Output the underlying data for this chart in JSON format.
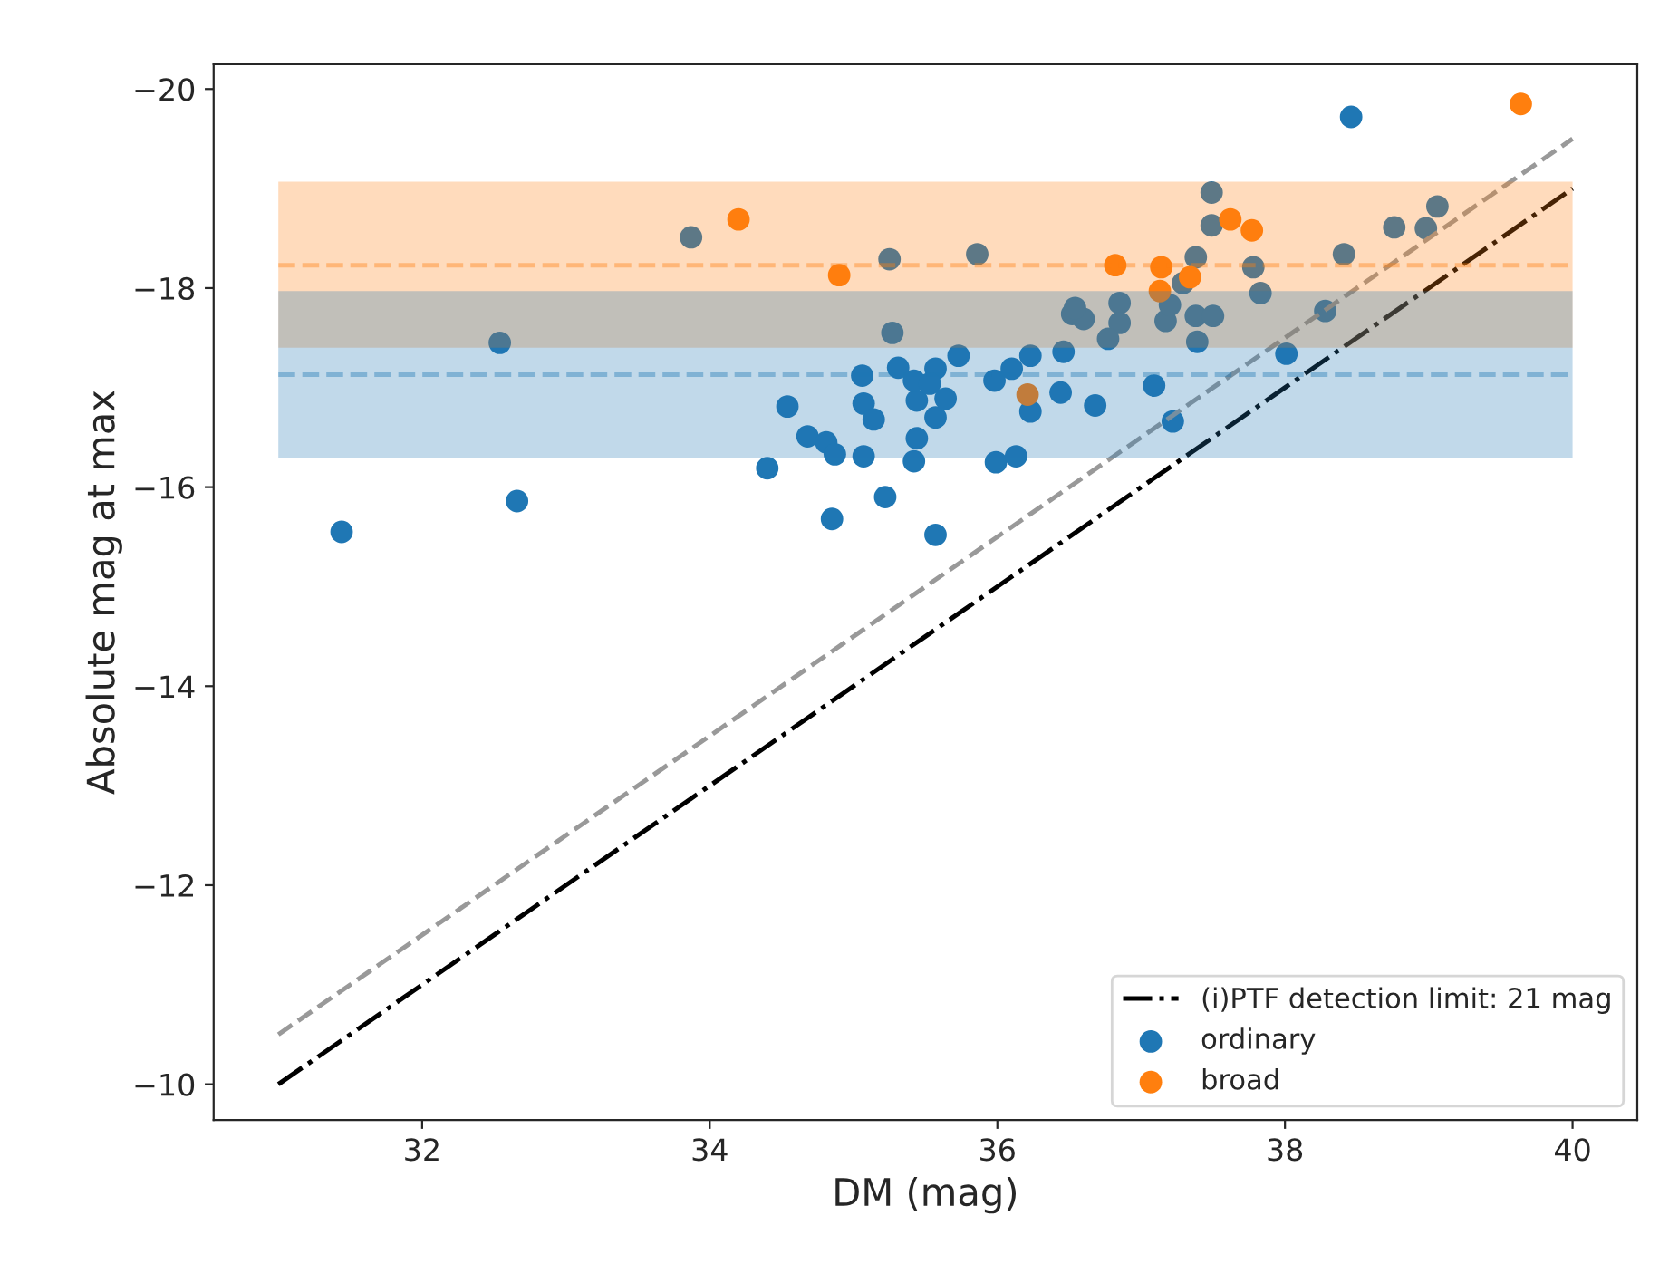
{
  "chart_data": {
    "type": "scatter",
    "xlabel": "DM (mag)",
    "ylabel": "Absolute mag at max",
    "xlim": [
      30.55,
      40.45
    ],
    "ylim": [
      -9.64,
      -20.25
    ],
    "xticks": [
      32,
      34,
      36,
      38,
      40
    ],
    "yticks": [
      {
        "value": -20,
        "label": "−20"
      },
      {
        "value": -18,
        "label": "−18"
      },
      {
        "value": -16,
        "label": "−16"
      },
      {
        "value": -14,
        "label": "−14"
      },
      {
        "value": -12,
        "label": "−12"
      },
      {
        "value": -10,
        "label": "−10"
      }
    ],
    "grid": false,
    "legend": "bottom right",
    "series": [
      {
        "name": "(i)PTF detection limit: 21 mag",
        "type": "line",
        "color": "#000000",
        "line_style": "dashdot",
        "marker": "none",
        "x": [
          31,
          40
        ],
        "values": [
          -10,
          -19
        ]
      },
      {
        "type": "line",
        "color": "#999999",
        "line_style": "dashed",
        "marker": "none",
        "x": [
          31,
          40
        ],
        "values": [
          -10.5,
          -19.5
        ]
      },
      {
        "name": "ordinary",
        "color": "#1f77b4",
        "marker": "circle",
        "x": [
          31.44,
          32.66,
          32.54,
          33.87,
          35.25,
          35.27,
          34.4,
          34.85,
          35.22,
          35.57,
          34.54,
          34.68,
          34.81,
          34.87,
          35.07,
          35.42,
          35.06,
          35.07,
          35.14,
          35.31,
          35.44,
          35.42,
          35.44,
          35.57,
          35.57,
          38.46,
          37.49,
          37.49,
          35.86,
          37.29,
          37.38,
          37.78,
          37.83,
          38.41,
          38.76,
          38.98,
          39.06,
          38.28,
          38.01,
          37.22,
          37.09,
          36.68,
          36.44,
          36.46,
          36.23,
          36.23,
          36.1,
          35.98,
          35.99,
          36.13,
          35.64,
          35.73,
          35.53,
          36.52,
          36.6,
          36.54,
          36.85,
          36.85,
          36.77,
          37.17,
          37.2,
          37.38,
          37.5,
          37.39
        ],
        "values": [
          -15.55,
          -15.86,
          -17.45,
          -18.51,
          -18.29,
          -17.55,
          -16.19,
          -15.68,
          -15.9,
          -15.52,
          -16.81,
          -16.51,
          -16.45,
          -16.33,
          -16.31,
          -16.26,
          -17.12,
          -16.84,
          -16.68,
          -17.2,
          -16.87,
          -17.07,
          -16.49,
          -17.19,
          -16.7,
          -19.72,
          -18.96,
          -18.63,
          -18.34,
          -18.05,
          -18.31,
          -18.21,
          -17.95,
          -18.34,
          -18.61,
          -18.6,
          -18.82,
          -17.77,
          -17.34,
          -16.66,
          -17.02,
          -16.82,
          -16.95,
          -17.36,
          -16.76,
          -17.32,
          -17.19,
          -17.07,
          -16.25,
          -16.31,
          -16.89,
          -17.32,
          -17.04,
          -17.74,
          -17.69,
          -17.8,
          -17.85,
          -17.65,
          -17.49,
          -17.67,
          -17.83,
          -17.72,
          -17.72,
          -17.46
        ]
      },
      {
        "name": "broad",
        "color": "#ff7f0e",
        "marker": "circle",
        "x": [
          34.2,
          34.9,
          39.64,
          37.62,
          37.77,
          36.82,
          37.14,
          37.13,
          37.34,
          36.21
        ],
        "values": [
          -18.69,
          -18.13,
          -19.85,
          -18.69,
          -18.58,
          -18.23,
          -18.21,
          -17.97,
          -18.11,
          -16.93
        ]
      }
    ],
    "bands": [
      {
        "axis": "y",
        "from": -19.07,
        "to": -17.4,
        "color": "#ff7f0e"
      },
      {
        "axis": "y",
        "from": -17.97,
        "to": -16.29,
        "color": "#1f77b4"
      }
    ],
    "ref_lines": [
      {
        "axis": "y",
        "value": -18.23,
        "color": "#ff7f0e",
        "line_style": "dashed"
      },
      {
        "axis": "y",
        "value": -17.13,
        "color": "#1f77b4",
        "line_style": "dashed"
      }
    ]
  }
}
